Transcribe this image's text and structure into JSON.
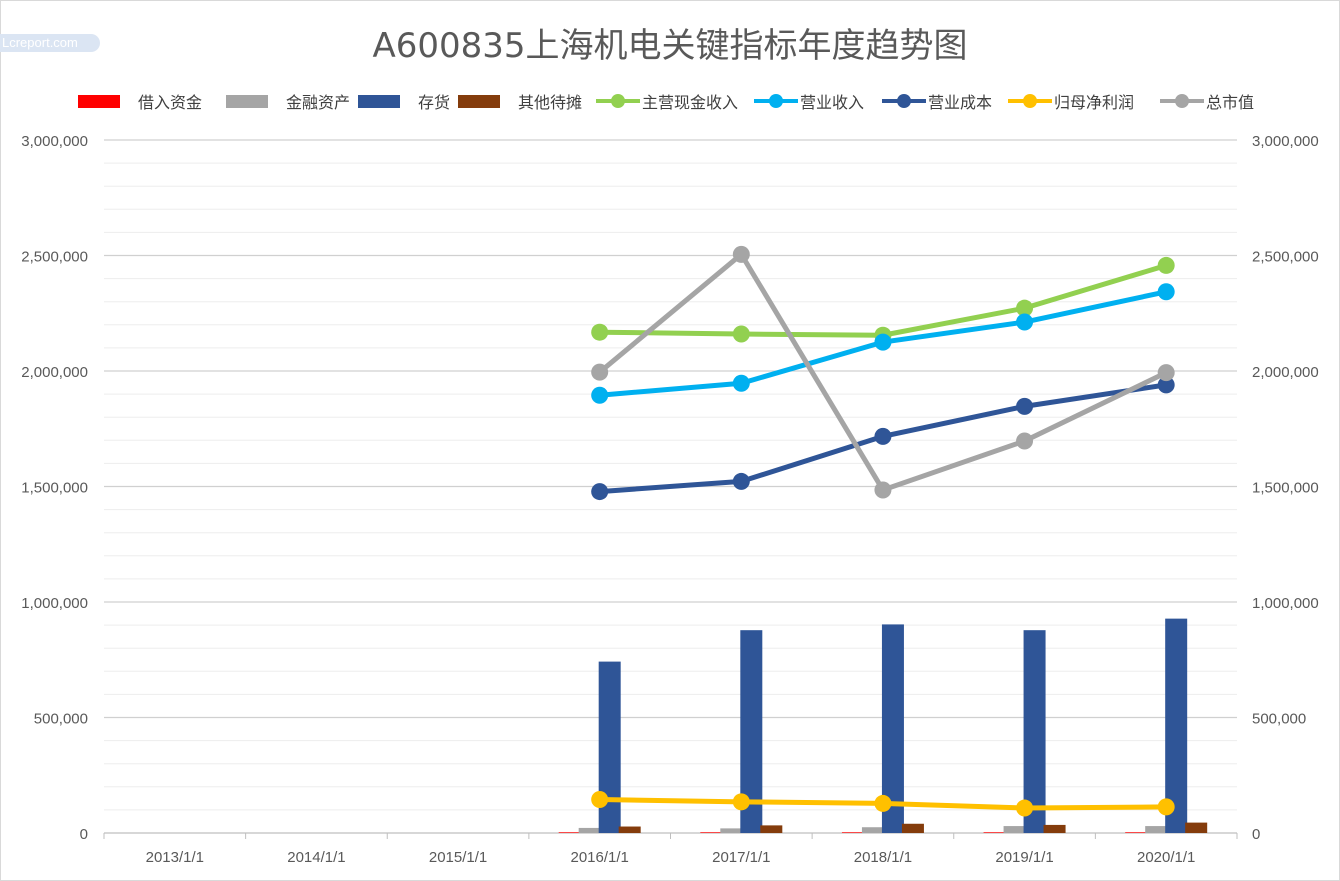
{
  "title": "A600835上海机电关键指标年度趋势图",
  "watermark": "Lcreport.com",
  "chart_data": {
    "type": "bar",
    "categories": [
      "2013/1/1",
      "2014/1/1",
      "2015/1/1",
      "2016/1/1",
      "2017/1/1",
      "2018/1/1",
      "2019/1/1",
      "2020/1/1"
    ],
    "ylim": [
      0,
      3000000
    ],
    "y_ticks": [
      "0",
      "500,000",
      "1,000,000",
      "1,500,000",
      "2,000,000",
      "2,500,000",
      "3,000,000"
    ],
    "y2_ticks": [
      "0",
      "500,000",
      "1,000,000",
      "1,500,000",
      "2,000,000",
      "2,500,000",
      "3,000,000"
    ],
    "grid": true,
    "legend_position": "top",
    "bar_series": [
      {
        "name": "借入资金",
        "color": "#ff0000",
        "values": [
          null,
          null,
          null,
          3000,
          3000,
          3000,
          3000,
          3000
        ]
      },
      {
        "name": "金融资产",
        "color": "#a5a5a5",
        "values": [
          null,
          null,
          null,
          22000,
          20000,
          25000,
          30000,
          30000
        ]
      },
      {
        "name": "存货",
        "color": "#2f5597",
        "values": [
          null,
          null,
          null,
          742000,
          878000,
          903000,
          878000,
          928000
        ]
      },
      {
        "name": "其他待摊",
        "color": "#843c0c",
        "values": [
          null,
          null,
          null,
          28000,
          33000,
          40000,
          35000,
          45000
        ]
      }
    ],
    "line_series": [
      {
        "name": "主营现金收入",
        "color": "#92d050",
        "values": [
          null,
          null,
          null,
          2168000,
          2160000,
          2155000,
          2272000,
          2457000
        ]
      },
      {
        "name": "营业收入",
        "color": "#00b0f0",
        "values": [
          null,
          null,
          null,
          1895000,
          1947000,
          2125000,
          2212000,
          2343000
        ]
      },
      {
        "name": "营业成本",
        "color": "#2f5597",
        "values": [
          null,
          null,
          null,
          1478000,
          1522000,
          1717000,
          1847000,
          1940000
        ]
      },
      {
        "name": "归母净利润",
        "color": "#ffc000",
        "values": [
          null,
          null,
          null,
          145000,
          135000,
          128000,
          108000,
          113000
        ]
      },
      {
        "name": "总市值",
        "color": "#a5a5a5",
        "values": [
          null,
          null,
          null,
          1995000,
          2505000,
          1485000,
          1697000,
          1993000
        ]
      }
    ]
  }
}
